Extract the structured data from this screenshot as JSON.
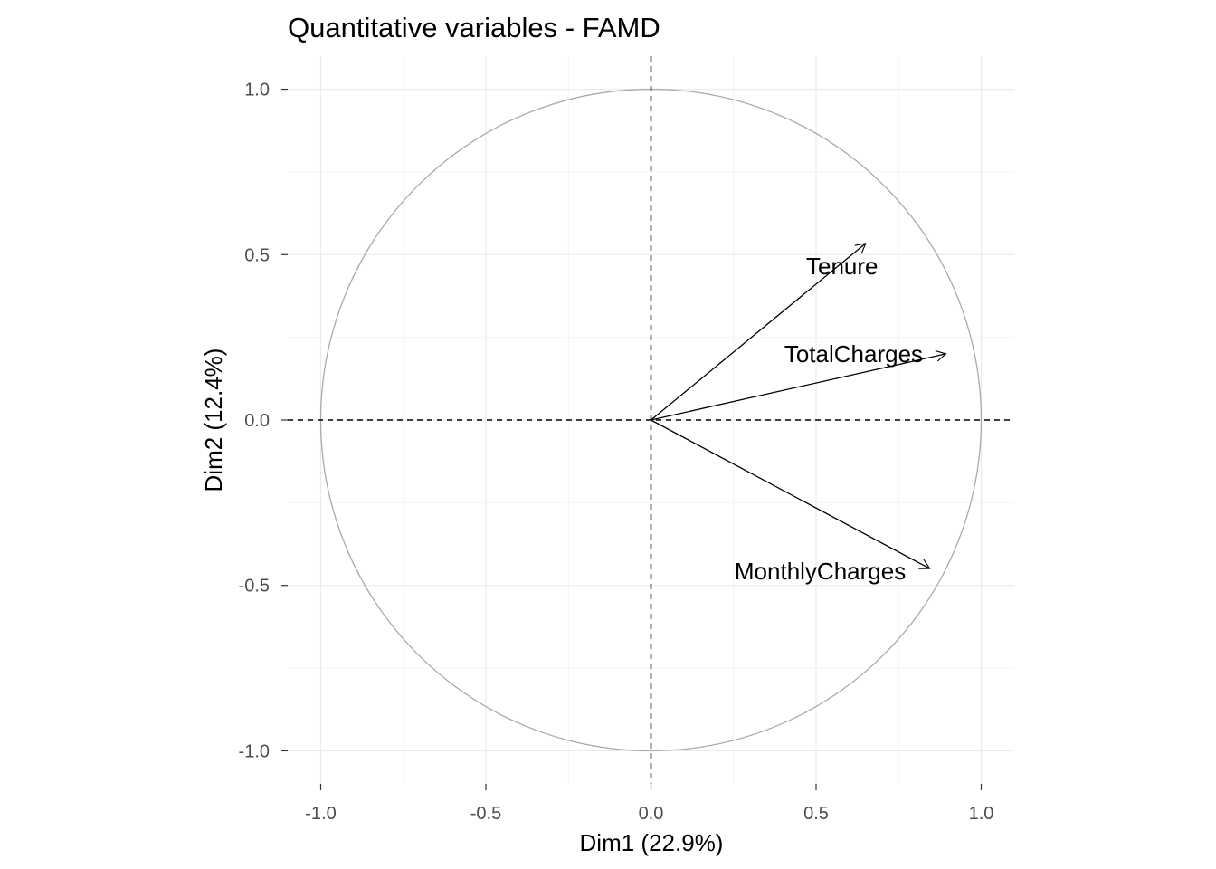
{
  "chart_data": {
    "type": "scatter",
    "subtype": "correlation-circle",
    "title": "Quantitative variables - FAMD",
    "xlabel": "Dim1 (22.9%)",
    "ylabel": "Dim2 (12.4%)",
    "xlim": [
      -1.1,
      1.1
    ],
    "ylim": [
      -1.1,
      1.1
    ],
    "xticks": [
      -1.0,
      -0.5,
      0.0,
      0.5,
      1.0
    ],
    "yticks": [
      -1.0,
      -0.5,
      0.0,
      0.5,
      1.0
    ],
    "xtick_labels": [
      "-1.0",
      "-0.5",
      "0.0",
      "0.5",
      "1.0"
    ],
    "ytick_labels": [
      "-1.0",
      "-0.5",
      "0.0",
      "0.5",
      "1.0"
    ],
    "grid": true,
    "variables": [
      {
        "name": "Tenure",
        "x": 0.65,
        "y": 0.534
      },
      {
        "name": "TotalCharges",
        "x": 0.893,
        "y": 0.2
      },
      {
        "name": "MonthlyCharges",
        "x": 0.844,
        "y": -0.449
      }
    ],
    "colors": {
      "arrow": "#000000",
      "circle": "#aaaaaa",
      "grid": "#ebebeb",
      "tick_text": "#4d4d4d"
    }
  }
}
